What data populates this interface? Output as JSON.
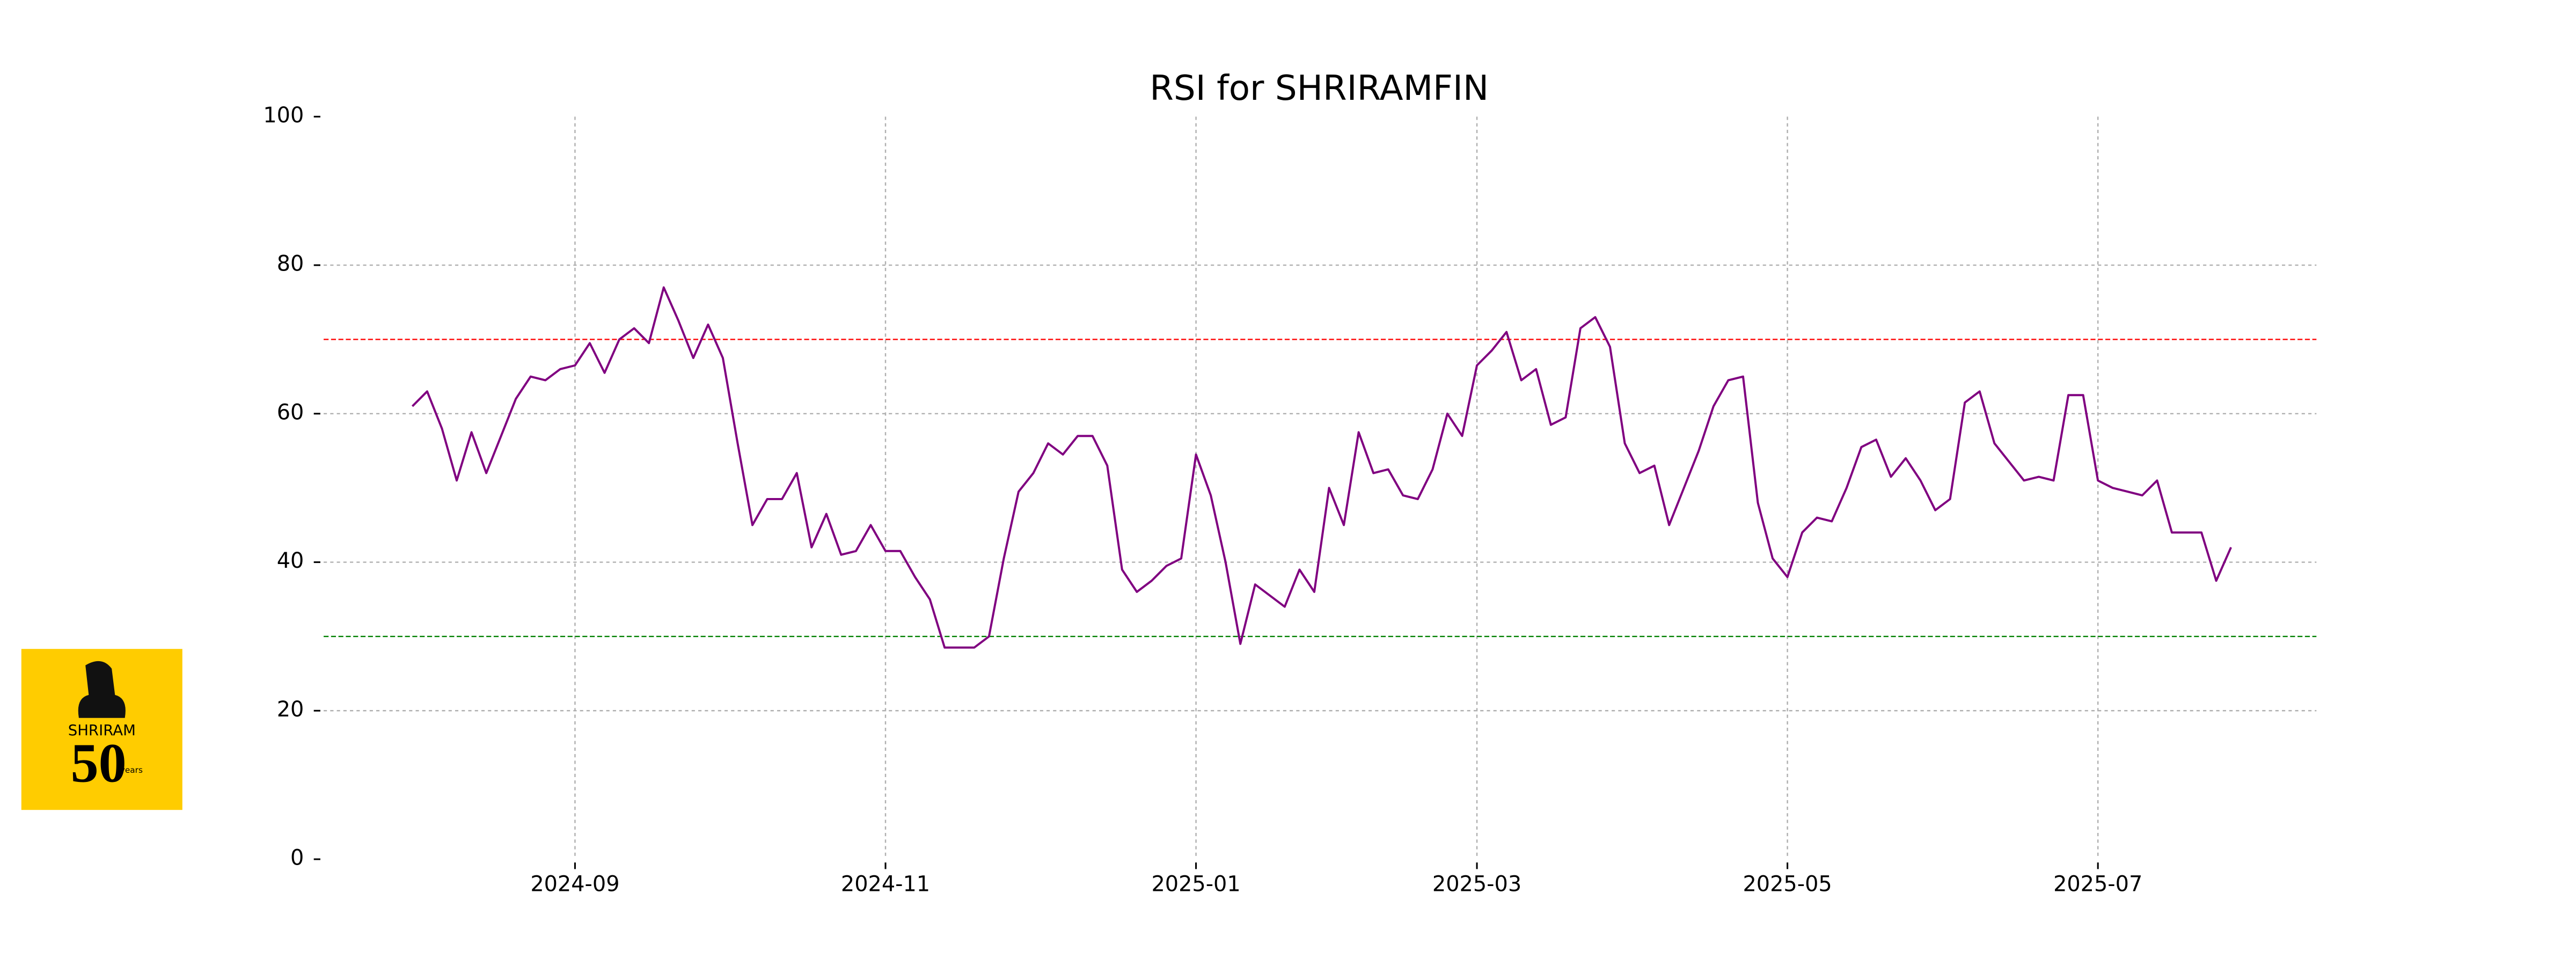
{
  "chart_data": {
    "type": "line",
    "title": "RSI for SHRIRAMFIN",
    "categories": [
      null,
      null,
      null,
      null,
      null,
      null,
      null,
      null,
      null,
      null,
      null,
      "2024-09",
      null,
      null,
      null,
      null,
      null,
      null,
      null,
      null,
      null,
      null,
      null,
      null,
      null,
      null,
      null,
      null,
      null,
      null,
      null,
      null,
      "2024-11",
      null,
      null,
      null,
      null,
      null,
      null,
      null,
      null,
      null,
      null,
      null,
      null,
      null,
      null,
      null,
      null,
      null,
      null,
      null,
      null,
      "2025-01",
      null,
      null,
      null,
      null,
      null,
      null,
      null,
      null,
      null,
      null,
      null,
      null,
      null,
      null,
      null,
      null,
      null,
      null,
      "2025-03",
      null,
      null,
      null,
      null,
      null,
      null,
      null,
      null,
      null,
      null,
      null,
      null,
      null,
      null,
      null,
      null,
      null,
      null,
      null,
      null,
      "2025-05",
      null,
      null,
      null,
      null,
      null,
      null,
      null,
      null,
      null,
      null,
      null,
      null,
      null,
      null,
      null,
      null,
      null,
      null,
      null,
      null,
      "2025-07",
      null,
      null,
      null,
      null,
      null,
      null,
      null,
      null,
      null
    ],
    "series": [
      {
        "color": "#800080",
        "values": [
          61,
          63,
          58,
          51,
          57.5,
          52,
          57,
          62,
          65,
          64.5,
          66,
          66.5,
          69.5,
          65.5,
          70,
          71.5,
          69.5,
          77,
          72.5,
          67.5,
          72,
          67.5,
          56,
          45,
          48.5,
          48.5,
          52,
          42,
          46.5,
          41,
          41.5,
          45,
          41.5,
          41.5,
          38,
          35,
          28.5,
          28.5,
          28.5,
          30,
          40.5,
          49.5,
          52,
          56,
          54.5,
          57,
          57,
          53,
          39,
          36,
          37.5,
          39.5,
          40.5,
          54.5,
          49,
          40,
          29,
          37,
          35.5,
          34,
          39,
          36,
          50,
          45,
          57.5,
          52,
          52.5,
          49,
          48.5,
          52.5,
          60,
          57,
          66.5,
          68.5,
          71,
          64.5,
          66,
          58.5,
          59.5,
          71.5,
          73,
          69,
          56,
          52,
          53,
          45,
          50,
          55,
          61,
          64.5,
          65,
          48,
          40.5,
          38,
          44,
          46,
          45.5,
          50,
          55.5,
          56.5,
          51.5,
          54,
          51,
          47,
          48.5,
          61.5,
          63,
          56,
          53.5,
          51,
          51.5,
          51,
          62.5,
          62.5,
          51,
          50,
          49.5,
          49,
          51,
          44,
          44,
          44,
          37.5,
          42
        ]
      }
    ],
    "ylim": [
      0,
      100
    ],
    "yticks": [
      0,
      20,
      40,
      60,
      80,
      100
    ],
    "grid": true,
    "reference_lines": [
      {
        "value": 70,
        "color": "#ff0000"
      },
      {
        "value": 30,
        "color": "#008000"
      }
    ]
  },
  "logo": {
    "name": "SHRIRAM",
    "number": "50",
    "suffix": "years"
  }
}
